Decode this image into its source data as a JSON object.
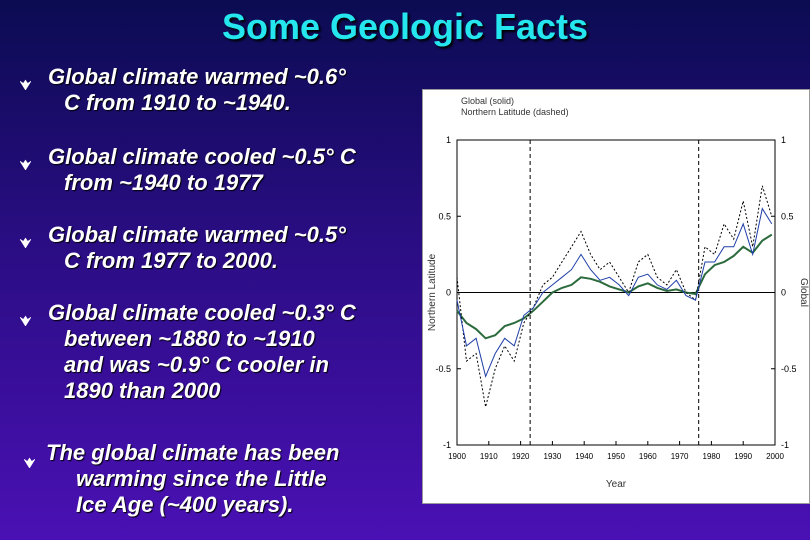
{
  "slide": {
    "title": "Some Geologic Facts",
    "bullets": [
      {
        "line1": "Global climate warmed ~0.6°",
        "line2": "C from 1910 to ~1940."
      },
      {
        "line1": "Global climate cooled ~0.5° C",
        "line2": "from ~1940 to 1977"
      },
      {
        "line1": "Global climate warmed ~0.5°",
        "line2": "C from 1977 to 2000."
      },
      {
        "line1": "Global climate cooled ~0.3° C",
        "line2": "between ~1880 to ~1910",
        "line3": "and was ~0.9° C cooler in",
        "line4": "1890 than 2000"
      },
      {
        "line1": "The global climate has been",
        "line2": "warming since the Little",
        "line3": "Ice Age (~400 years)."
      }
    ],
    "colors": {
      "title": "#25e6ee",
      "bullet_marker": "#ffffff",
      "background_top": "#0b0c52",
      "background_bottom": "#4a10b4"
    }
  },
  "chart_data": {
    "type": "line",
    "legend": [
      "Global (solid)",
      "Northern Latitude (dashed)"
    ],
    "xlabel": "Year",
    "ylabel_left": "Northern Latitude",
    "ylabel_right": "Global",
    "xlim": [
      1900,
      2000
    ],
    "ylim": [
      -1,
      1
    ],
    "x_ticks": [
      "1900",
      "1910",
      "1920",
      "1930",
      "1940",
      "1950",
      "1960",
      "1970",
      "1980",
      "1990",
      "2000"
    ],
    "y_ticks_left": [
      "1",
      "0.5",
      "0",
      "-0.5",
      "-1"
    ],
    "y_ticks_right": [
      "1",
      "0.5",
      "0",
      "-0.5",
      "-1"
    ],
    "vertical_markers": [
      1923,
      1976
    ],
    "series": [
      {
        "name": "Global (solid)",
        "style": "solid",
        "color": "#2c6b3e",
        "x": [
          1900,
          1903,
          1906,
          1909,
          1912,
          1915,
          1918,
          1921,
          1924,
          1927,
          1930,
          1933,
          1936,
          1939,
          1942,
          1945,
          1948,
          1951,
          1954,
          1957,
          1960,
          1963,
          1966,
          1969,
          1972,
          1975,
          1978,
          1981,
          1984,
          1987,
          1990,
          1993,
          1996,
          1999
        ],
        "y": [
          -0.12,
          -0.2,
          -0.24,
          -0.3,
          -0.28,
          -0.22,
          -0.2,
          -0.17,
          -0.12,
          -0.06,
          0.0,
          0.03,
          0.05,
          0.1,
          0.09,
          0.07,
          0.04,
          0.02,
          0.0,
          0.04,
          0.06,
          0.03,
          0.01,
          0.02,
          0.0,
          -0.01,
          0.12,
          0.18,
          0.2,
          0.24,
          0.3,
          0.26,
          0.34,
          0.38
        ]
      },
      {
        "name": "Northern Latitude (dashed)",
        "style": "dashed",
        "color": "#000000",
        "x": [
          1900,
          1903,
          1906,
          1909,
          1912,
          1915,
          1918,
          1921,
          1924,
          1927,
          1930,
          1933,
          1936,
          1939,
          1942,
          1945,
          1948,
          1951,
          1954,
          1957,
          1960,
          1963,
          1966,
          1969,
          1972,
          1975,
          1978,
          1981,
          1984,
          1987,
          1990,
          1993,
          1996,
          1999
        ],
        "y": [
          0.1,
          -0.45,
          -0.4,
          -0.75,
          -0.5,
          -0.35,
          -0.45,
          -0.2,
          -0.1,
          0.05,
          0.1,
          0.2,
          0.3,
          0.4,
          0.25,
          0.15,
          0.2,
          0.1,
          0.0,
          0.2,
          0.25,
          0.1,
          0.05,
          0.15,
          0.0,
          -0.05,
          0.3,
          0.25,
          0.45,
          0.35,
          0.6,
          0.3,
          0.7,
          0.5
        ]
      },
      {
        "name": "",
        "style": "solid",
        "color": "#1f3fa8",
        "x": [
          1900,
          1903,
          1906,
          1909,
          1912,
          1915,
          1918,
          1921,
          1924,
          1927,
          1930,
          1933,
          1936,
          1939,
          1942,
          1945,
          1948,
          1951,
          1954,
          1957,
          1960,
          1963,
          1966,
          1969,
          1972,
          1975,
          1978,
          1981,
          1984,
          1987,
          1990,
          1993,
          1996,
          1999
        ],
        "y": [
          -0.05,
          -0.35,
          -0.3,
          -0.55,
          -0.4,
          -0.3,
          -0.35,
          -0.15,
          -0.1,
          0.0,
          0.05,
          0.1,
          0.15,
          0.25,
          0.15,
          0.08,
          0.1,
          0.05,
          -0.02,
          0.1,
          0.12,
          0.05,
          0.02,
          0.08,
          -0.02,
          -0.05,
          0.2,
          0.2,
          0.3,
          0.3,
          0.45,
          0.25,
          0.55,
          0.45
        ]
      }
    ]
  }
}
